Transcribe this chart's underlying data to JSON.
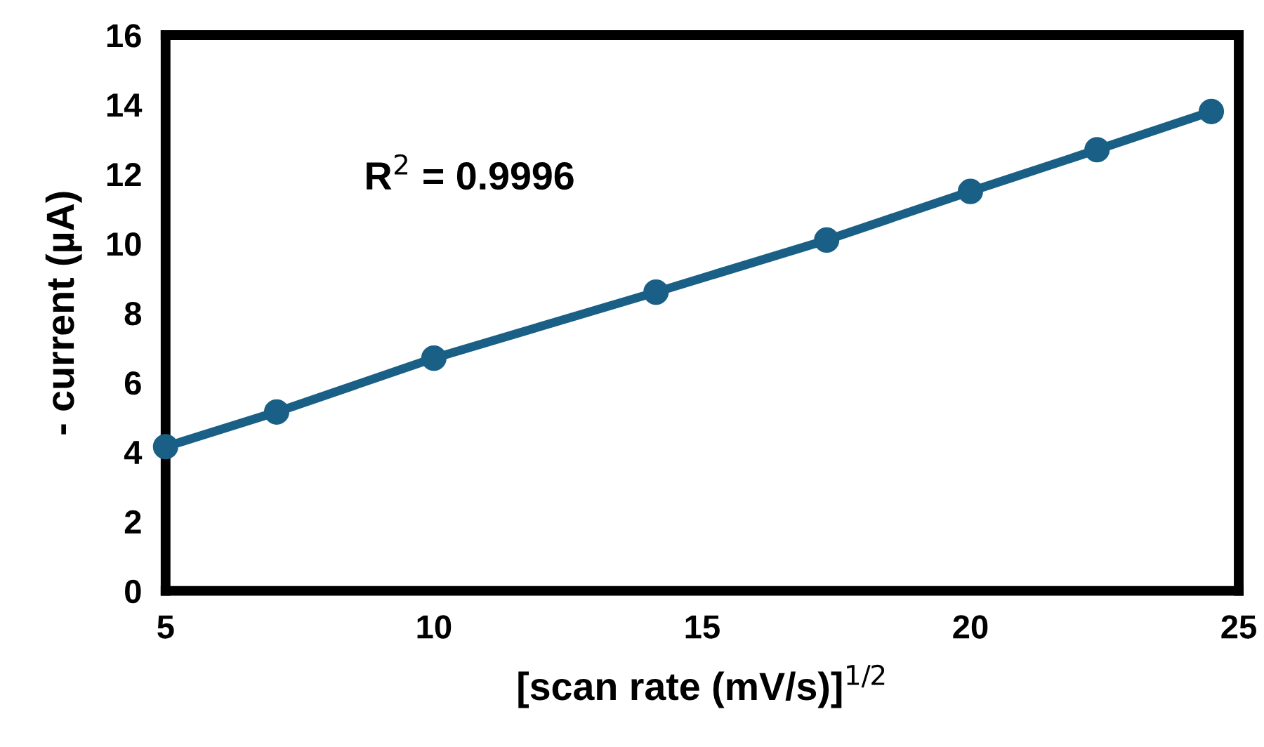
{
  "chart_data": {
    "type": "line",
    "xlabel": "[scan rate (mV/s)]$^{1/2}$",
    "ylabel": "- current (µA)",
    "x": [
      5,
      7.07,
      10,
      14.14,
      17.32,
      20,
      22.36,
      24.49
    ],
    "series": [
      {
        "color": "#1a5f85",
        "values": [
          4.15,
          5.15,
          6.7,
          8.6,
          10.1,
          11.5,
          12.7,
          13.8
        ]
      }
    ],
    "marker": "circle",
    "line_style": "solid",
    "xlim": [
      5,
      25
    ],
    "xticks": [
      5,
      10,
      15,
      20,
      25
    ],
    "ylim": [
      0,
      16
    ],
    "yticks": [
      0,
      2,
      4,
      6,
      8,
      10,
      12,
      14,
      16
    ],
    "annotations": [
      "R$^{2}$ = 0.9996"
    ],
    "grid": false,
    "legend": false
  }
}
